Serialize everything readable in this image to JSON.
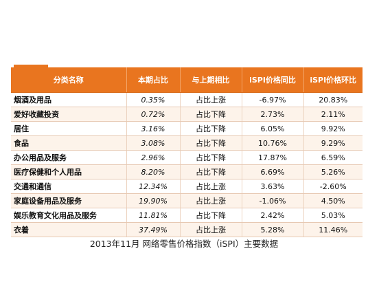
{
  "table": {
    "headers": [
      "分类名称",
      "本期占比",
      "与上期相比",
      "iSPI价格同比",
      "iSPI价格环比"
    ],
    "rows": [
      [
        "烟酒及用品",
        "0.35%",
        "占比上涨",
        "-6.97%",
        "20.83%"
      ],
      [
        "爱好收藏投资",
        "0.72%",
        "占比下降",
        "2.73%",
        "2.11%"
      ],
      [
        "居住",
        "3.16%",
        "占比下降",
        "6.05%",
        "9.92%"
      ],
      [
        "食品",
        "3.08%",
        "占比下降",
        "10.76%",
        "9.29%"
      ],
      [
        "办公用品及服务",
        "2.96%",
        "占比下降",
        "17.87%",
        "6.59%"
      ],
      [
        "医疗保健和个人用品",
        "8.20%",
        "占比下降",
        "6.69%",
        "5.26%"
      ],
      [
        "交通和通信",
        "12.34%",
        "占比上涨",
        "3.63%",
        "-2.60%"
      ],
      [
        "家庭设备用品及服务",
        "19.90%",
        "占比上涨",
        "-1.06%",
        "4.50%"
      ],
      [
        "娱乐教育文化用品及服务",
        "11.81%",
        "占比下降",
        "2.42%",
        "5.03%"
      ],
      [
        "衣着",
        "37.49%",
        "占比上涨",
        "5.28%",
        "11.46%"
      ]
    ]
  },
  "caption": "2013年11月 网络零售价格指数（iSPI）主要数据"
}
